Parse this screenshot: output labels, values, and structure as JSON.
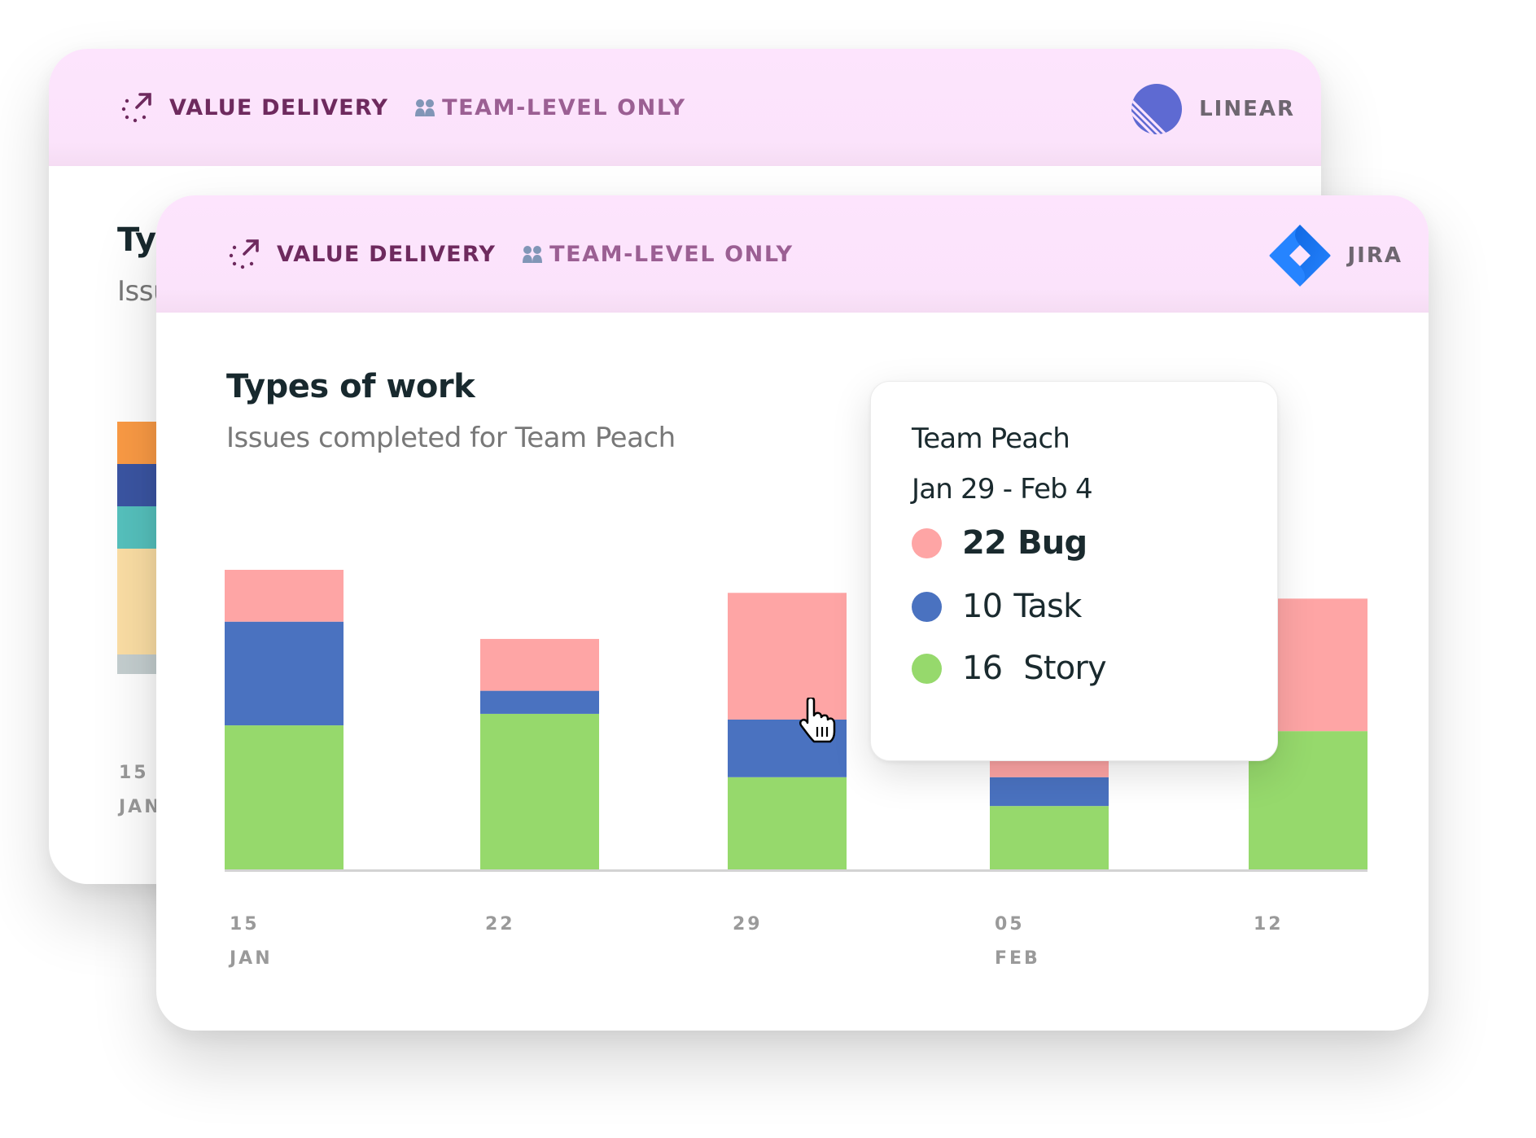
{
  "back_card": {
    "metric_label": "VALUE DELIVERY",
    "scope_label": "TEAM-LEVEL ONLY",
    "source_label": "LINEAR",
    "source_icon": "linear-logo",
    "title": "Types of work",
    "subtitle": "Issues completed for Team Peach",
    "visible_bar_segment_colors": [
      "#fb9b45",
      "#3b55a3",
      "#56c2be",
      "#fcdfa5",
      "#c5cfd0"
    ],
    "first_tick_day": "15",
    "first_tick_month": "JAN"
  },
  "front_card": {
    "metric_label": "VALUE DELIVERY",
    "scope_label": "TEAM-LEVEL ONLY",
    "source_label": "JIRA",
    "source_icon": "jira-logo",
    "title": "Types of work",
    "subtitle": "Issues completed for Team Peach"
  },
  "tooltip": {
    "team": "Team Peach",
    "range": "Jan 29 - Feb 4",
    "items": [
      {
        "count": "22",
        "name": "Bug",
        "color": "#fea5a5",
        "emphasized": true
      },
      {
        "count": "10",
        "name": "Task",
        "color": "#4a72c0",
        "emphasized": false
      },
      {
        "count": "16",
        "name": " Story",
        "color": "#96d96c",
        "emphasized": false
      }
    ]
  },
  "chart_data": {
    "type": "bar",
    "stacked": true,
    "title": "Types of work",
    "subtitle": "Issues completed for Team Peach",
    "xlabel": "",
    "ylabel": "",
    "categories": [
      "15 JAN",
      "22",
      "29",
      "05 FEB",
      "12"
    ],
    "tick_labels": [
      {
        "day": "15",
        "month": "JAN"
      },
      {
        "day": "22",
        "month": ""
      },
      {
        "day": "29",
        "month": ""
      },
      {
        "day": "05",
        "month": "FEB"
      },
      {
        "day": "12",
        "month": ""
      }
    ],
    "series": [
      {
        "name": "Story",
        "color": "#96d96c",
        "values": [
          25,
          27,
          16,
          11,
          24
        ]
      },
      {
        "name": "Task",
        "color": "#4a72c0",
        "values": [
          18,
          4,
          10,
          5,
          0
        ]
      },
      {
        "name": "Bug",
        "color": "#fea5a5",
        "values": [
          9,
          9,
          22,
          3,
          23
        ]
      }
    ],
    "ylim": [
      0,
      52
    ],
    "grid": false,
    "legend": "tooltip",
    "highlighted_category": "29"
  }
}
